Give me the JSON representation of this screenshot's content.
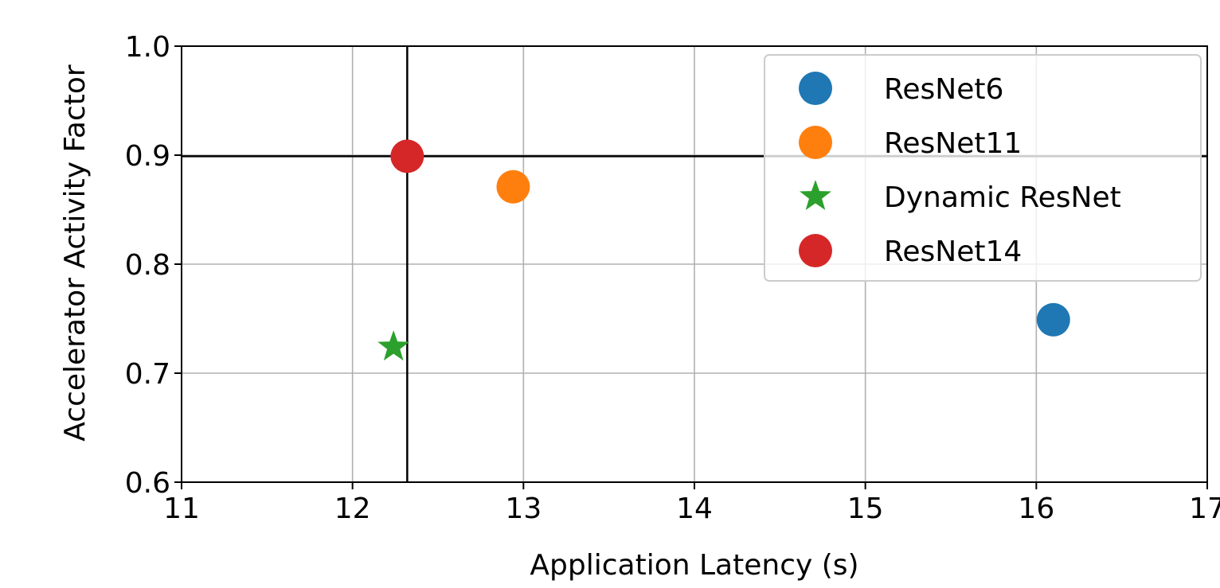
{
  "chart_data": {
    "type": "scatter",
    "title": "",
    "xlabel": "Application Latency (s)",
    "ylabel": "Accelerator Activity Factor",
    "xlim": [
      11,
      17
    ],
    "ylim": [
      0.6,
      1.0
    ],
    "x_ticks": [
      11,
      12,
      13,
      14,
      15,
      16,
      17
    ],
    "y_ticks": [
      0.6,
      0.7,
      0.8,
      0.9,
      1.0
    ],
    "x_tick_labels": [
      "11",
      "12",
      "13",
      "14",
      "15",
      "16",
      "17"
    ],
    "y_tick_labels": [
      "0.6",
      "0.7",
      "0.8",
      "0.9",
      "1.0"
    ],
    "grid": true,
    "legend_position": "top-right",
    "reference_lines": {
      "vertical_x": 12.32,
      "horizontal_y": 0.899
    },
    "series": [
      {
        "name": "ResNet6",
        "marker": "circle",
        "color": "#1f77b4",
        "x": [
          16.1
        ],
        "y": [
          0.749
        ]
      },
      {
        "name": "ResNet11",
        "marker": "circle",
        "color": "#ff7f0e",
        "x": [
          12.94
        ],
        "y": [
          0.871
        ]
      },
      {
        "name": "Dynamic ResNet",
        "marker": "star",
        "color": "#2ca02c",
        "x": [
          12.24
        ],
        "y": [
          0.724
        ]
      },
      {
        "name": "ResNet14",
        "marker": "circle",
        "color": "#d62728",
        "x": [
          12.32
        ],
        "y": [
          0.899
        ]
      }
    ]
  }
}
